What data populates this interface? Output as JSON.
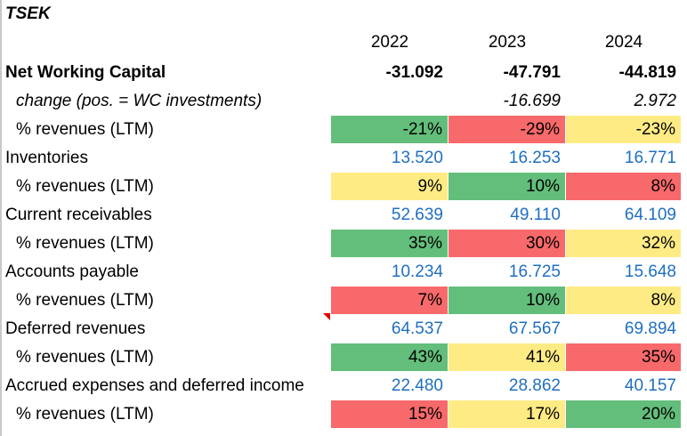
{
  "unit": "TSEK",
  "years": [
    "2022",
    "2023",
    "2024"
  ],
  "nwc": {
    "label": "Net Working Capital",
    "values": [
      "-31.092",
      "-47.791",
      "-44.819"
    ]
  },
  "change": {
    "label": "change (pos. = WC investments)",
    "values": [
      "",
      "-16.699",
      "2.972"
    ]
  },
  "nwc_pct": {
    "label": "% revenues (LTM)",
    "values": [
      "-21%",
      "-29%",
      "-23%"
    ],
    "colors": [
      "green",
      "red",
      "yellow"
    ]
  },
  "items": [
    {
      "label": "Inventories",
      "values": [
        "13.520",
        "16.253",
        "16.771"
      ],
      "pct_label": "% revenues (LTM)",
      "pct": [
        "9%",
        "10%",
        "8%"
      ],
      "colors": [
        "yellow",
        "green",
        "red"
      ]
    },
    {
      "label": "Current receivables",
      "values": [
        "52.639",
        "49.110",
        "64.109"
      ],
      "pct_label": "% revenues (LTM)",
      "pct": [
        "35%",
        "30%",
        "32%"
      ],
      "colors": [
        "green",
        "red",
        "yellow"
      ]
    },
    {
      "label": "Accounts payable",
      "values": [
        "10.234",
        "16.725",
        "15.648"
      ],
      "pct_label": "% revenues (LTM)",
      "pct": [
        "7%",
        "10%",
        "8%"
      ],
      "colors": [
        "red",
        "green",
        "yellow"
      ]
    },
    {
      "label": "Deferred revenues",
      "values": [
        "64.537",
        "67.567",
        "69.894"
      ],
      "pct_label": "% revenues (LTM)",
      "pct": [
        "43%",
        "41%",
        "35%"
      ],
      "colors": [
        "green",
        "yellow",
        "red"
      ]
    },
    {
      "label": "Accrued expenses and deferred income",
      "values": [
        "22.480",
        "28.862",
        "40.157"
      ],
      "pct_label": "% revenues (LTM)",
      "pct": [
        "15%",
        "17%",
        "20%"
      ],
      "colors": [
        "red",
        "yellow",
        "green"
      ]
    }
  ],
  "palette": {
    "green": "#63be7b",
    "red": "#f8696b",
    "yellow": "#ffeb84",
    "input_blue": "#1f6fbf"
  }
}
